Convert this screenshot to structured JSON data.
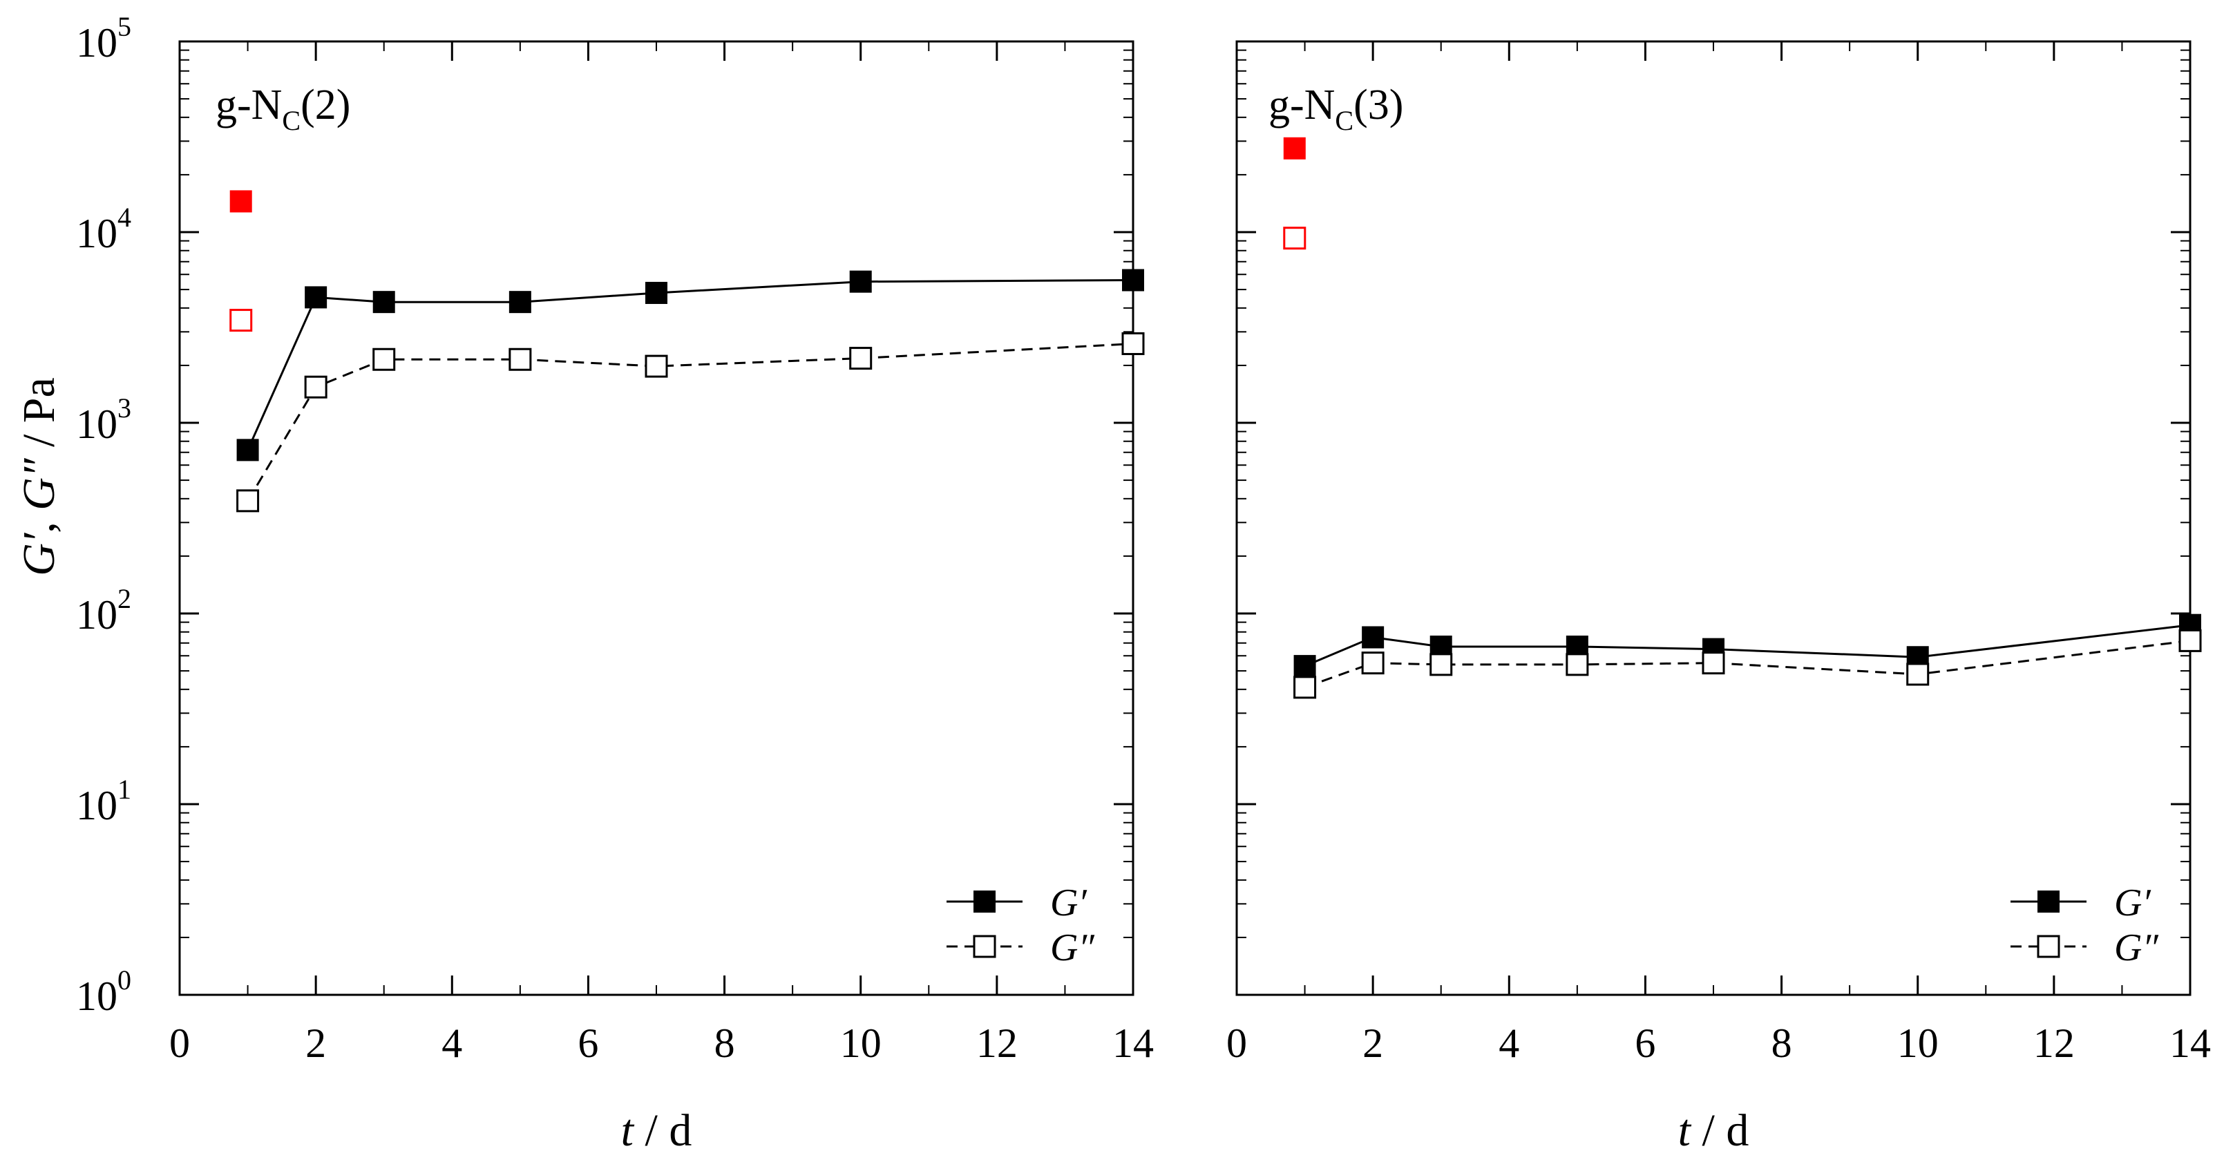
{
  "figure": {
    "ylabel": "G′, G″ / Pa",
    "ylabel_parts": {
      "g1": "G′",
      "sep": ", ",
      "g2": "G″",
      "unit": " / Pa"
    },
    "xlabel": "t / d",
    "xlabel_parts": {
      "t": "t",
      "unit": " / d"
    },
    "colors": {
      "series": "#000000",
      "initial": "#ff0000",
      "background": "#ffffff"
    }
  },
  "chart_data": [
    {
      "type": "line",
      "panel": "left",
      "title": "g-NC(2)",
      "title_parts": {
        "base": "g-N",
        "sub": "C",
        "tail": "(2)"
      },
      "xlabel": "t / d",
      "ylabel": "G′, G″ / Pa",
      "xlim": [
        0,
        14
      ],
      "ylim": [
        1,
        100000
      ],
      "yscale": "log",
      "xticks": [
        0,
        2,
        4,
        6,
        8,
        10,
        12,
        14
      ],
      "yticks": [
        {
          "base": "10",
          "exp": "0"
        },
        {
          "base": "10",
          "exp": "1"
        },
        {
          "base": "10",
          "exp": "2"
        },
        {
          "base": "10",
          "exp": "3"
        },
        {
          "base": "10",
          "exp": "4"
        },
        {
          "base": "10",
          "exp": "5"
        }
      ],
      "legend": {
        "position": "bottom-right",
        "entries": [
          "G′",
          "G″"
        ]
      },
      "series": [
        {
          "name": "G′",
          "marker": "filled-square",
          "line": "solid",
          "x": [
            1,
            2,
            3,
            5,
            7,
            10,
            14
          ],
          "y": [
            720,
            4550,
            4300,
            4300,
            4800,
            5500,
            5600
          ]
        },
        {
          "name": "G″",
          "marker": "open-square",
          "line": "dashed",
          "x": [
            1,
            2,
            3,
            5,
            7,
            10,
            14
          ],
          "y": [
            390,
            1540,
            2150,
            2150,
            1980,
            2180,
            2600
          ]
        }
      ],
      "initial_points": [
        {
          "name": "G′ (initial)",
          "marker": "filled-square",
          "color": "#ff0000",
          "x": 0.9,
          "y": 14500
        },
        {
          "name": "G″ (initial)",
          "marker": "open-square",
          "color": "#ff0000",
          "x": 0.9,
          "y": 3450
        }
      ]
    },
    {
      "type": "line",
      "panel": "right",
      "title": "g-NC(3)",
      "title_parts": {
        "base": "g-N",
        "sub": "C",
        "tail": "(3)"
      },
      "xlabel": "t / d",
      "ylabel": "",
      "xlim": [
        0,
        14
      ],
      "ylim": [
        1,
        100000
      ],
      "yscale": "log",
      "xticks": [
        0,
        2,
        4,
        6,
        8,
        10,
        12,
        14
      ],
      "legend": {
        "position": "bottom-right",
        "entries": [
          "G′",
          "G″"
        ]
      },
      "series": [
        {
          "name": "G′",
          "marker": "filled-square",
          "line": "solid",
          "x": [
            1,
            2,
            3,
            5,
            7,
            10,
            14
          ],
          "y": [
            53,
            75,
            67,
            67,
            65,
            59,
            87
          ]
        },
        {
          "name": "G″",
          "marker": "open-square",
          "line": "dashed",
          "x": [
            1,
            2,
            3,
            5,
            7,
            10,
            14
          ],
          "y": [
            41,
            55,
            54,
            54,
            55,
            48,
            72
          ]
        }
      ],
      "initial_points": [
        {
          "name": "G′ (initial)",
          "marker": "filled-square",
          "color": "#ff0000",
          "x": 0.85,
          "y": 27500
        },
        {
          "name": "G″ (initial)",
          "marker": "open-square",
          "color": "#ff0000",
          "x": 0.85,
          "y": 9300
        }
      ]
    }
  ]
}
